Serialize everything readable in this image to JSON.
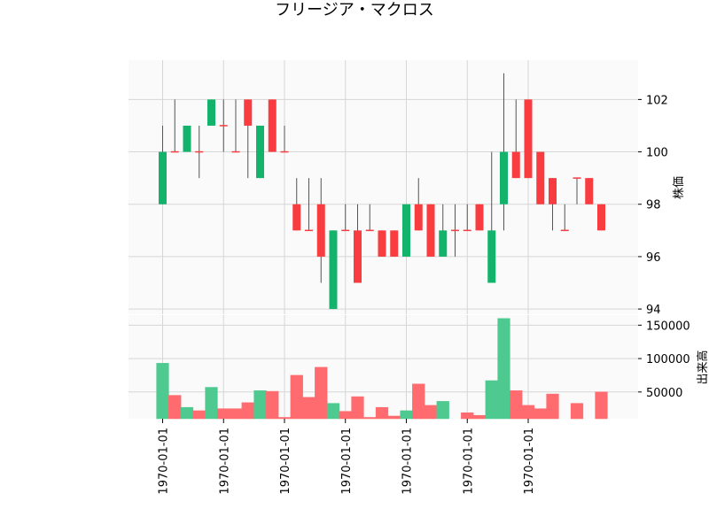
{
  "chart_data": {
    "type": "candlestick",
    "title": "フリージア・マクロス",
    "price_ylabel": "株価",
    "volume_ylabel": "出来高",
    "colors": {
      "up": "#14b36b",
      "down": "#f83c3f",
      "up_volume": "#4ec990",
      "down_volume": "#ff6b6e"
    },
    "price_yticks": [
      94,
      96,
      98,
      100,
      102
    ],
    "price_ylim": [
      93.8,
      103.5
    ],
    "volume_yticks": [
      50000,
      100000,
      150000
    ],
    "volume_ylim": [
      10000,
      165000
    ],
    "x_tick_indices": [
      0,
      5,
      10,
      15,
      20,
      25,
      30
    ],
    "x_tick_labels": [
      "1970-01-01",
      "1970-01-01",
      "1970-01-01",
      "1970-01-01",
      "1970-01-01",
      "1970-01-01",
      "1970-01-01"
    ],
    "candles": [
      {
        "open": 98,
        "high": 101,
        "low": 98,
        "close": 100,
        "volume": 93000
      },
      {
        "open": 100,
        "high": 102,
        "low": 100,
        "close": 100,
        "volume": 45000
      },
      {
        "open": 100,
        "high": 101,
        "low": 100,
        "close": 101,
        "volume": 27000
      },
      {
        "open": 100,
        "high": 101,
        "low": 99,
        "close": 100,
        "volume": 22000
      },
      {
        "open": 101,
        "high": 102,
        "low": 101,
        "close": 102,
        "volume": 57000
      },
      {
        "open": 101,
        "high": 102,
        "low": 100,
        "close": 101,
        "volume": 25000
      },
      {
        "open": 100,
        "high": 102,
        "low": 100,
        "close": 100,
        "volume": 25000
      },
      {
        "open": 102,
        "high": 102,
        "low": 99,
        "close": 101,
        "volume": 34000
      },
      {
        "open": 99,
        "high": 101,
        "low": 99,
        "close": 101,
        "volume": 52000
      },
      {
        "open": 102,
        "high": 102,
        "low": 100,
        "close": 100,
        "volume": 51000
      },
      {
        "open": 100,
        "high": 101,
        "low": 100,
        "close": 100,
        "volume": 12000
      },
      {
        "open": 98,
        "high": 99,
        "low": 97,
        "close": 97,
        "volume": 75000
      },
      {
        "open": 97,
        "high": 99,
        "low": 97,
        "close": 97,
        "volume": 42000
      },
      {
        "open": 98,
        "high": 99,
        "low": 95,
        "close": 96,
        "volume": 87000
      },
      {
        "open": 94,
        "high": 97,
        "low": 94,
        "close": 97,
        "volume": 33000
      },
      {
        "open": 97,
        "high": 98,
        "low": 97,
        "close": 97,
        "volume": 21000
      },
      {
        "open": 97,
        "high": 98,
        "low": 95,
        "close": 95,
        "volume": 43000
      },
      {
        "open": 97,
        "high": 98,
        "low": 97,
        "close": 97,
        "volume": 12000
      },
      {
        "open": 97,
        "high": 97,
        "low": 96,
        "close": 96,
        "volume": 27000
      },
      {
        "open": 97,
        "high": 97,
        "low": 96,
        "close": 96,
        "volume": 14000
      },
      {
        "open": 96,
        "high": 98,
        "low": 96,
        "close": 98,
        "volume": 22000
      },
      {
        "open": 98,
        "high": 99,
        "low": 97,
        "close": 97,
        "volume": 62000
      },
      {
        "open": 98,
        "high": 98,
        "low": 96,
        "close": 96,
        "volume": 30000
      },
      {
        "open": 96,
        "high": 98,
        "low": 96,
        "close": 97,
        "volume": 36000
      },
      {
        "open": 97,
        "high": 98,
        "low": 96,
        "close": 97,
        "volume": 10000
      },
      {
        "open": 97,
        "high": 98,
        "low": 97,
        "close": 97,
        "volume": 19000
      },
      {
        "open": 98,
        "high": 98,
        "low": 97,
        "close": 97,
        "volume": 15000
      },
      {
        "open": 95,
        "high": 100,
        "low": 95,
        "close": 97,
        "volume": 67000
      },
      {
        "open": 98,
        "high": 103,
        "low": 97,
        "close": 100,
        "volume": 160000
      },
      {
        "open": 100,
        "high": 102,
        "low": 99,
        "close": 99,
        "volume": 52000
      },
      {
        "open": 102,
        "high": 102,
        "low": 99,
        "close": 99,
        "volume": 30000
      },
      {
        "open": 100,
        "high": 100,
        "low": 98,
        "close": 98,
        "volume": 25000
      },
      {
        "open": 99,
        "high": 99,
        "low": 97,
        "close": 98,
        "volume": 47000
      },
      {
        "open": 97,
        "high": 98,
        "low": 97,
        "close": 97,
        "volume": 8000
      },
      {
        "open": 99,
        "high": 99,
        "low": 98,
        "close": 99,
        "volume": 33000
      },
      {
        "open": 99,
        "high": 99,
        "low": 98,
        "close": 98,
        "volume": 8000
      },
      {
        "open": 98,
        "high": 98,
        "low": 97,
        "close": 97,
        "volume": 50000
      }
    ]
  }
}
